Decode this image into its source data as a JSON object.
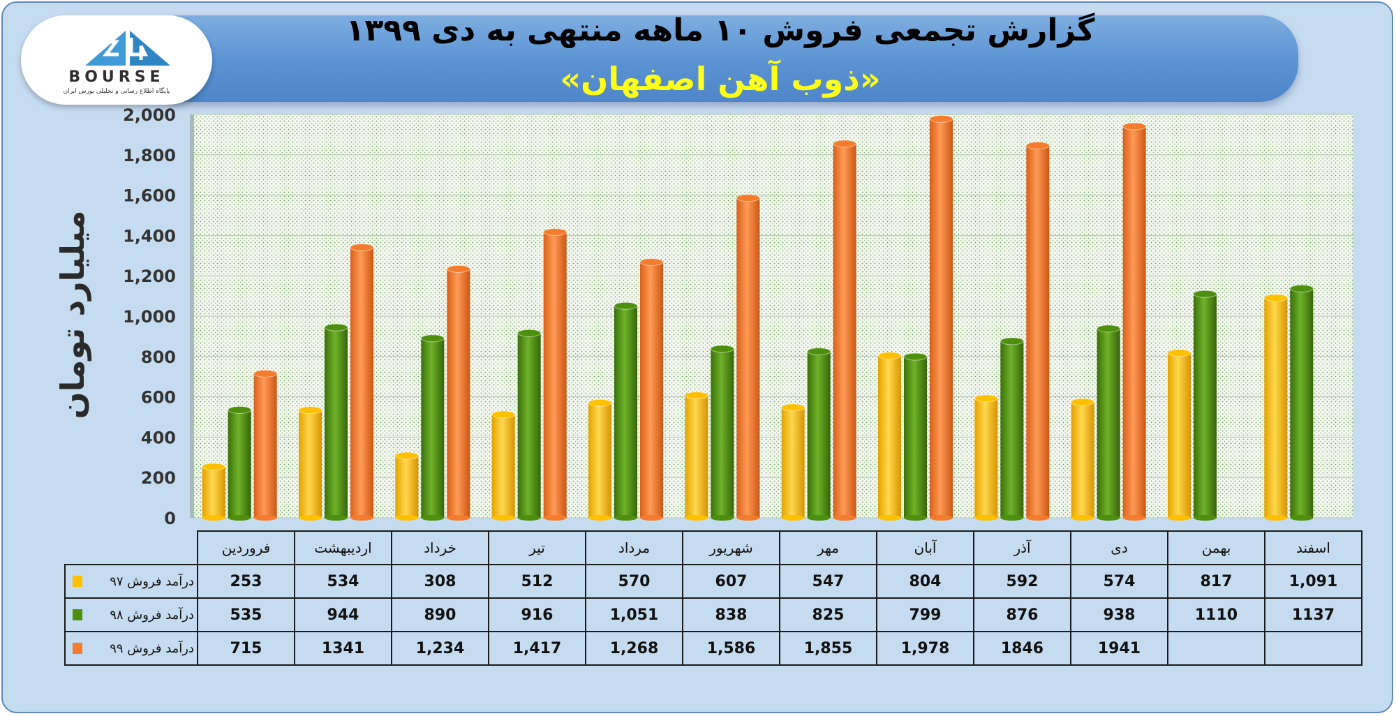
{
  "title": "گزارش تجمعی فروش ۱۰ ماهه منتهی به دی ۱۳۹۹",
  "subtitle": "«ذوب آهن اصفهان»",
  "logo": {
    "text": "BOURSE",
    "subtitle": "پایگاه اطلاع رسانی و تحلیلی بورس ایران"
  },
  "chart_data": {
    "type": "bar",
    "ylabel": "میلیارد تومان",
    "ylim": [
      0,
      2000
    ],
    "yticks": [
      "0",
      "200",
      "400",
      "600",
      "800",
      "1,000",
      "1,200",
      "1,400",
      "1,600",
      "1,800",
      "2,000"
    ],
    "categories": [
      "فروردین",
      "اردیبهشت",
      "خرداد",
      "تیر",
      "مرداد",
      "شهریور",
      "مهر",
      "آبان",
      "آذر",
      "دی",
      "بهمن",
      "اسفند"
    ],
    "series": [
      {
        "name": "درآمد فروش ۹۷",
        "color": "#ffc000",
        "values": [
          253,
          534,
          308,
          512,
          570,
          607,
          547,
          804,
          592,
          574,
          817,
          1091
        ],
        "labels": [
          "253",
          "534",
          "308",
          "512",
          "570",
          "607",
          "547",
          "804",
          "592",
          "574",
          "817",
          "1,091"
        ]
      },
      {
        "name": "درآمد فروش ۹۸",
        "color": "#4e8f0e",
        "values": [
          535,
          944,
          890,
          916,
          1051,
          838,
          825,
          799,
          876,
          938,
          1110,
          1137
        ],
        "labels": [
          "535",
          "944",
          "890",
          "916",
          "1,051",
          "838",
          "825",
          "799",
          "876",
          "938",
          "1110",
          "1137"
        ]
      },
      {
        "name": "درآمد فروش ۹۹",
        "color": "#f47c2c",
        "values": [
          715,
          1341,
          1234,
          1417,
          1268,
          1586,
          1855,
          1978,
          1846,
          1941,
          null,
          null
        ],
        "labels": [
          "715",
          "1341",
          "1,234",
          "1,417",
          "1,268",
          "1,586",
          "1,855",
          "1,978",
          "1846",
          "1941",
          "",
          ""
        ]
      }
    ]
  }
}
